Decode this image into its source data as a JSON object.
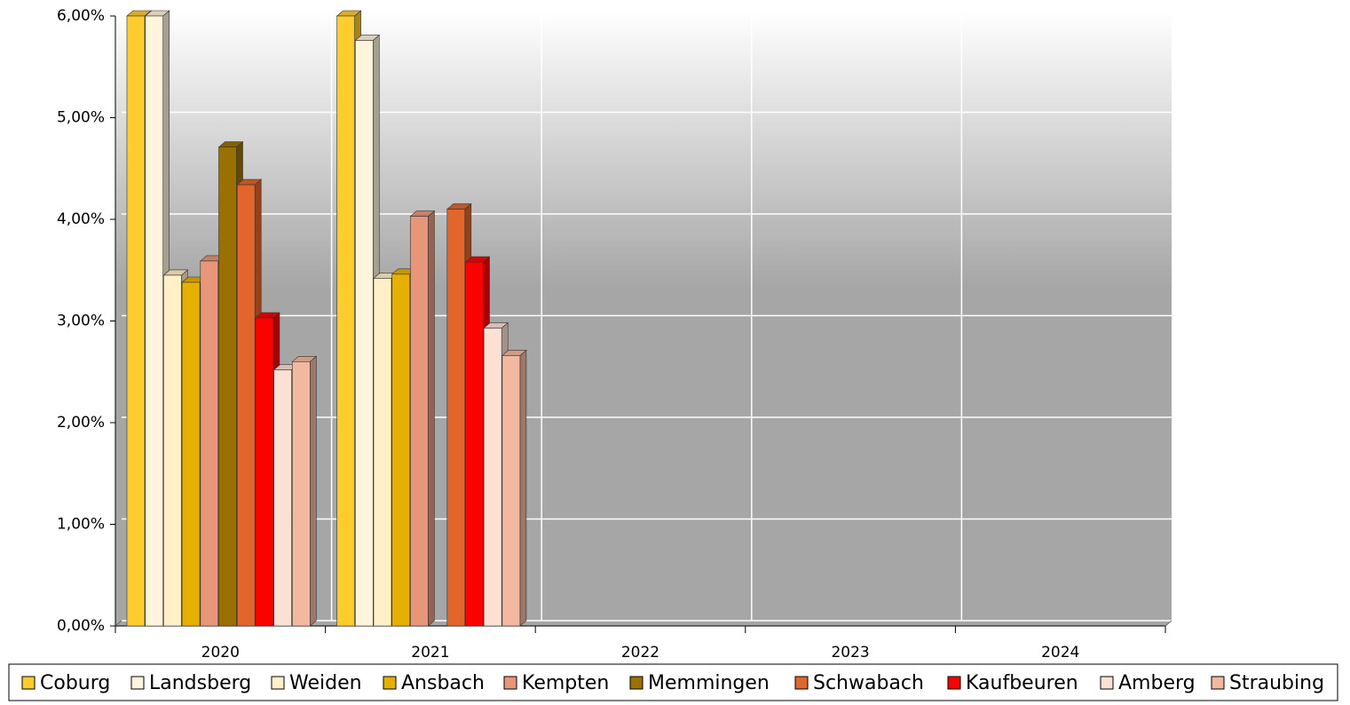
{
  "chart_data": {
    "type": "bar3d",
    "categories": [
      "2020",
      "2021",
      "2022",
      "2023",
      "2024"
    ],
    "series": [
      {
        "name": "Coburg",
        "color": "#ffcc2e",
        "values": [
          6.0,
          6.0,
          null,
          null,
          null
        ]
      },
      {
        "name": "Landsberg",
        "color": "#fff4dc",
        "values": [
          6.0,
          5.76,
          null,
          null,
          null
        ]
      },
      {
        "name": "Weiden",
        "color": "#fff0c8",
        "values": [
          3.45,
          3.42,
          null,
          null,
          null
        ]
      },
      {
        "name": "Ansbach",
        "color": "#e6b000",
        "values": [
          3.38,
          3.46,
          null,
          null,
          null
        ]
      },
      {
        "name": "Kempten",
        "color": "#e8967a",
        "values": [
          3.59,
          4.03,
          null,
          null,
          null
        ]
      },
      {
        "name": "Memmingen",
        "color": "#9a7000",
        "values": [
          4.71,
          null,
          null,
          null,
          null
        ]
      },
      {
        "name": "Schwabach",
        "color": "#e0662c",
        "values": [
          4.34,
          4.1,
          null,
          null,
          null
        ]
      },
      {
        "name": "Kaufbeuren",
        "color": "#ff0000",
        "values": [
          3.03,
          3.58,
          null,
          null,
          null
        ]
      },
      {
        "name": "Amberg",
        "color": "#fde0d4",
        "values": [
          2.52,
          2.93,
          null,
          null,
          null
        ]
      },
      {
        "name": "Straubing",
        "color": "#f2b8a0",
        "values": [
          2.6,
          2.66,
          null,
          null,
          null
        ]
      }
    ],
    "ylim": [
      0,
      6
    ],
    "yticks": [
      {
        "value": 0,
        "label": "0,00%"
      },
      {
        "value": 1,
        "label": "1,00%"
      },
      {
        "value": 2,
        "label": "2,00%"
      },
      {
        "value": 3,
        "label": "3,00%"
      },
      {
        "value": 4,
        "label": "4,00%"
      },
      {
        "value": 5,
        "label": "5,00%"
      },
      {
        "value": 6,
        "label": "6,00%"
      }
    ],
    "grid": true
  }
}
